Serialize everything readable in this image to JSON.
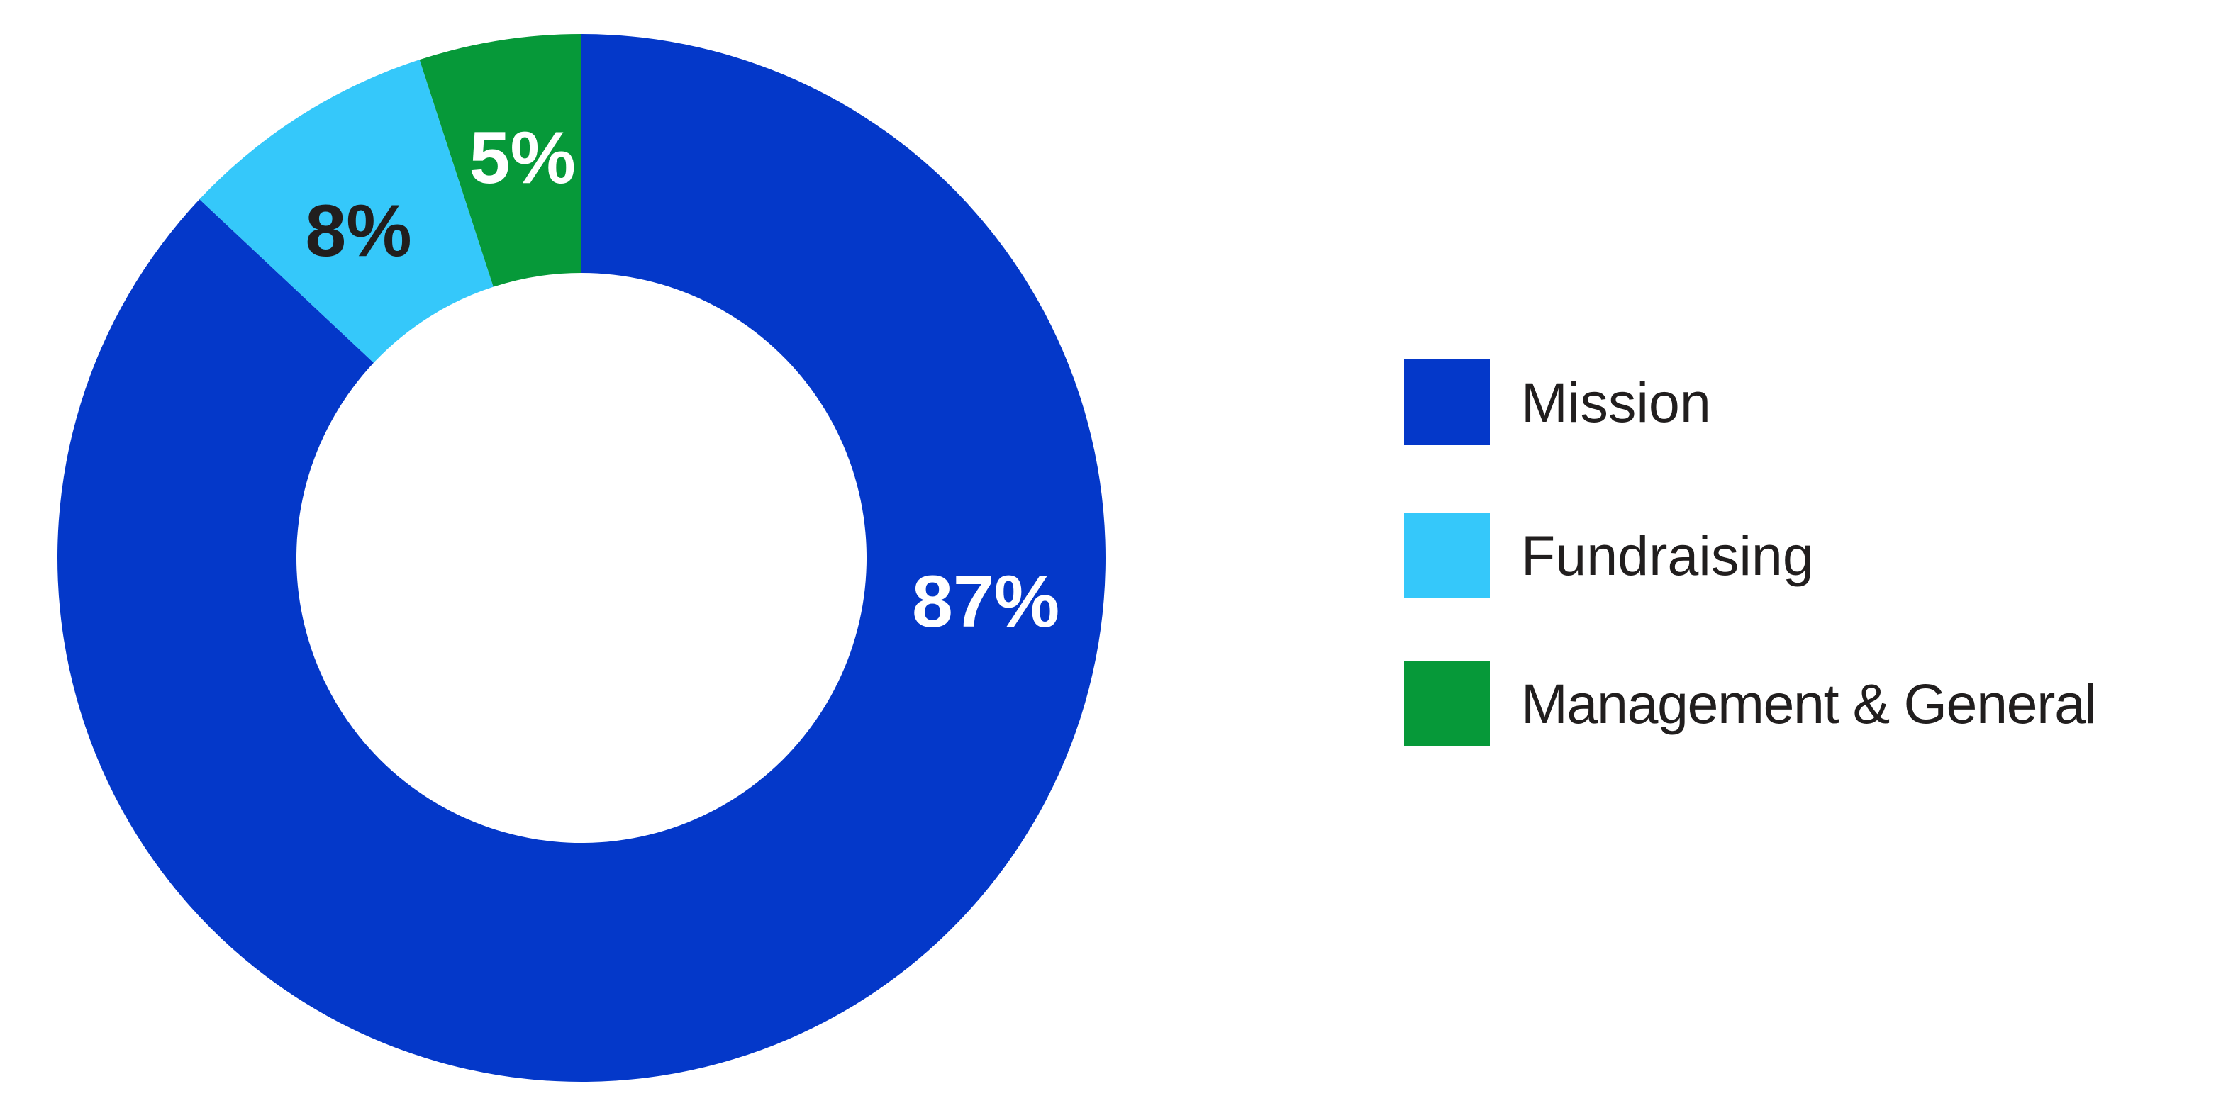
{
  "figure": {
    "background_color": "#ffffff",
    "text_color": "#211e1e"
  },
  "chart_data": {
    "type": "pie",
    "title": "",
    "donut": true,
    "hole_ratio": 0.544,
    "start_angle_deg": 0,
    "direction": "clockwise",
    "grid": false,
    "legend_position": "right-center",
    "categories": [
      "Mission",
      "Fundraising",
      "Management & General"
    ],
    "values": [
      87,
      8,
      5
    ],
    "slices": [
      {
        "label": "Mission",
        "value": 87,
        "pct_label": "87%",
        "color": "#0438c9",
        "label_color": "#ffffff",
        "label_angle_deg": 96.2,
        "label_radius_ratio": 0.776
      },
      {
        "label": "Fundraising",
        "value": 8,
        "pct_label": "8%",
        "color": "#35c8fa",
        "label_color": "#211e1e",
        "label_angle_deg": 325.7,
        "label_radius_ratio": 0.755
      },
      {
        "label": "Management & General",
        "value": 5,
        "pct_label": "5%",
        "color": "#069939",
        "label_color": "#ffffff",
        "label_angle_deg": 351.6,
        "label_radius_ratio": 0.771
      }
    ]
  }
}
